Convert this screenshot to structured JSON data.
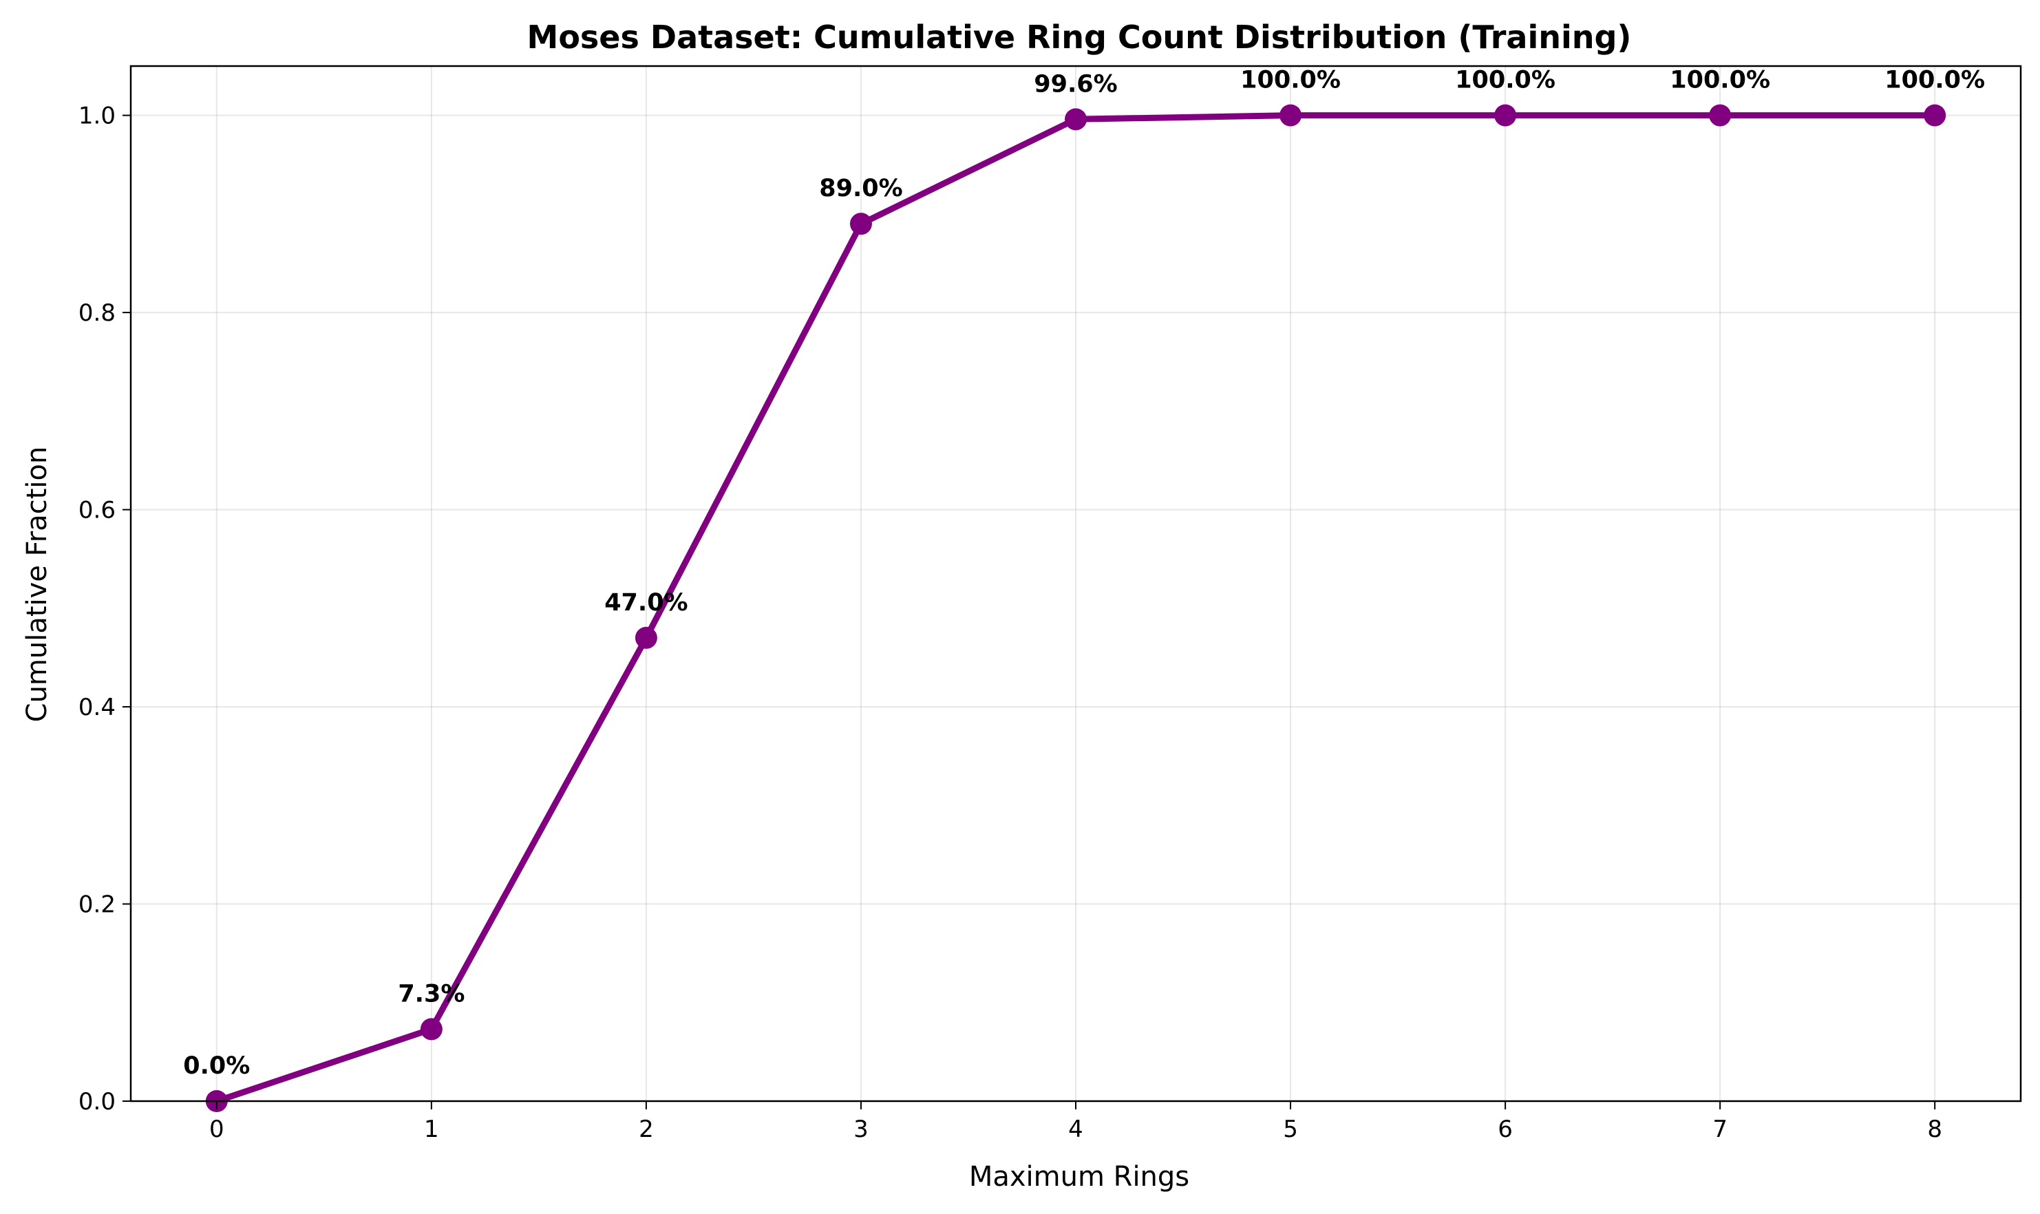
{
  "chart_data": {
    "type": "line",
    "title": "Moses Dataset: Cumulative Ring Count Distribution (Training)",
    "xlabel": "Maximum Rings",
    "ylabel": "Cumulative Fraction",
    "x": [
      0,
      1,
      2,
      3,
      4,
      5,
      6,
      7,
      8
    ],
    "series": [
      {
        "values": [
          0.0,
          0.073,
          0.47,
          0.89,
          0.996,
          1.0,
          1.0,
          1.0,
          1.0
        ],
        "color": "#800080",
        "marker": "circle"
      }
    ],
    "data_labels": [
      "0.0%",
      "7.3%",
      "47.0%",
      "89.0%",
      "99.6%",
      "100.0%",
      "100.0%",
      "100.0%",
      "100.0%"
    ],
    "x_ticks": [
      "0",
      "1",
      "2",
      "3",
      "4",
      "5",
      "6",
      "7",
      "8"
    ],
    "y_ticks": [
      "0.0",
      "0.2",
      "0.4",
      "0.6",
      "0.8",
      "1.0"
    ],
    "y_tick_values": [
      0.0,
      0.2,
      0.4,
      0.6,
      0.8,
      1.0
    ],
    "xlim": [
      -0.4,
      8.4
    ],
    "ylim": [
      0.0,
      1.05
    ],
    "grid": true,
    "legend": false
  }
}
